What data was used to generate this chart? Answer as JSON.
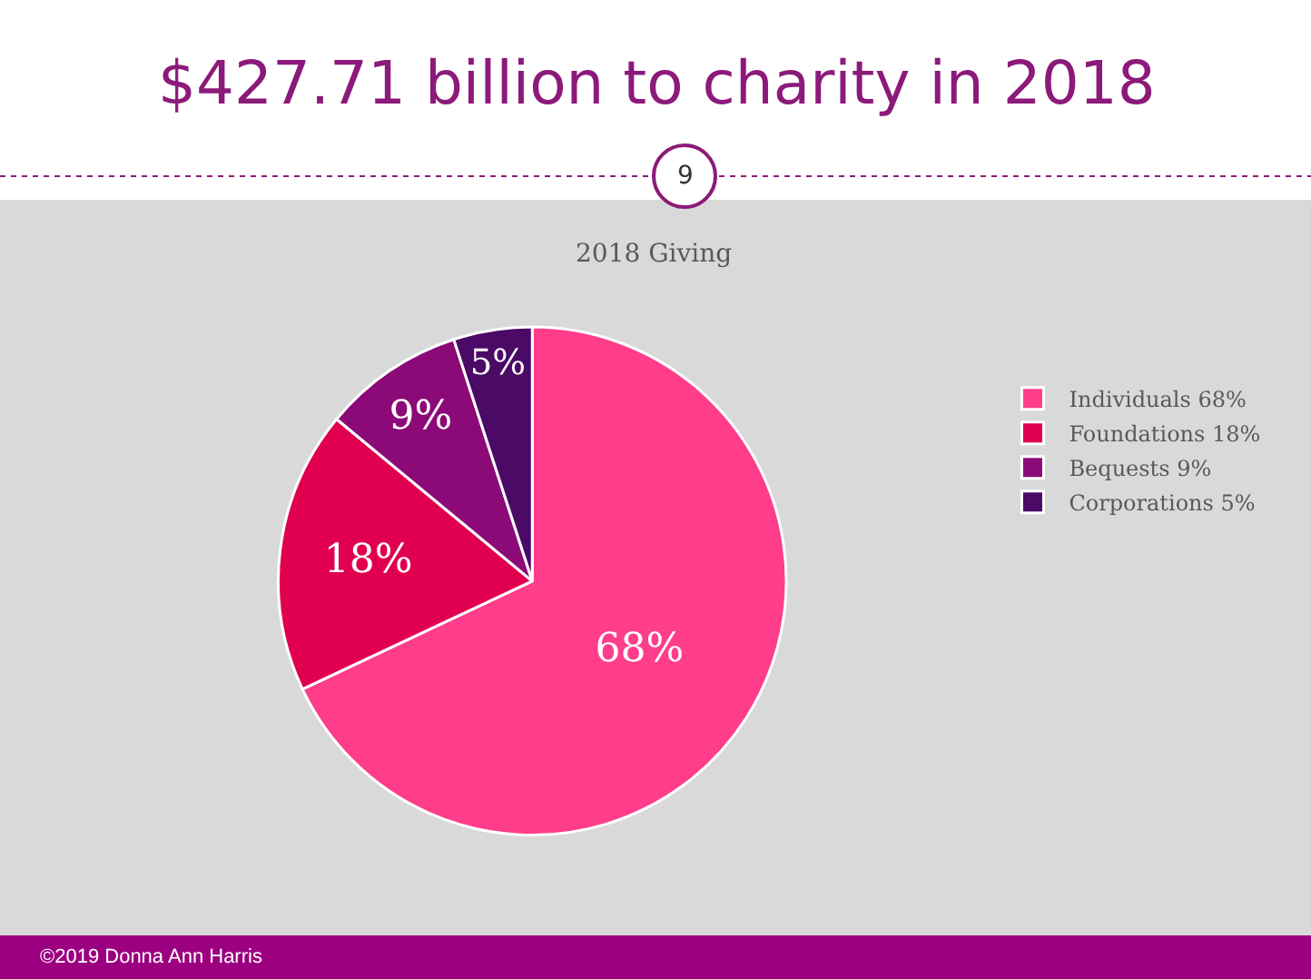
{
  "chart_data": {
    "type": "pie",
    "title": "$427.71 billion to charity in 2018",
    "subtitle": "2018 Giving",
    "categories": [
      "Individuals 68%",
      "Foundations 18%",
      "Bequests 9%",
      "Corporations 5%"
    ],
    "values": [
      68,
      18,
      9,
      5
    ],
    "value_labels": [
      "68%",
      "18%",
      "9%",
      "5%"
    ],
    "colors": [
      "#ff3d8b",
      "#e0004f",
      "#8c0a78",
      "#4a0a66"
    ],
    "legend": "right",
    "annotations": [
      "9",
      "©2019 Donna Ann Harris"
    ]
  }
}
